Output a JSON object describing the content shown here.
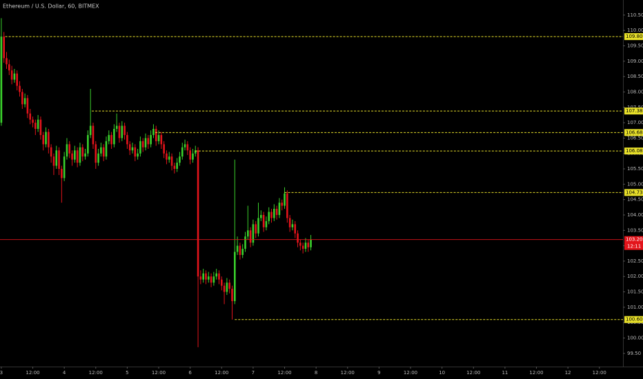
{
  "chart_data": {
    "type": "candlestick",
    "title": "Ethereum / U.S. Dollar, 60, BITMEX",
    "x": [
      0,
      1,
      2,
      3,
      4,
      5,
      6,
      7,
      8,
      9,
      10,
      11,
      12,
      13,
      14,
      15,
      16,
      17,
      18,
      19,
      20,
      21,
      22,
      23,
      24,
      25,
      26,
      27,
      28,
      29,
      30,
      31,
      32,
      33,
      34,
      35,
      36,
      37,
      38,
      39,
      40,
      41,
      42,
      43,
      44,
      45,
      46,
      47,
      48,
      49,
      50,
      51,
      52,
      53,
      54,
      55,
      56,
      57,
      58,
      59,
      60,
      61,
      62,
      63,
      64,
      65,
      66,
      67,
      68,
      69,
      70,
      71,
      72,
      73,
      74,
      75,
      76,
      77,
      78,
      79,
      80,
      81,
      82,
      83,
      84,
      85,
      86,
      87,
      88,
      89,
      90,
      91,
      92,
      93,
      94,
      95,
      96,
      97,
      98,
      99,
      100,
      101,
      102,
      103,
      104,
      105,
      106,
      107,
      108,
      109,
      110,
      111,
      112,
      113,
      114,
      115,
      116,
      117,
      118
    ],
    "candles": [
      [
        107.0,
        110.4,
        106.9,
        109.8
      ],
      [
        109.8,
        109.95,
        108.95,
        109.1
      ],
      [
        109.1,
        109.3,
        108.75,
        108.9
      ],
      [
        108.9,
        109.05,
        108.55,
        108.7
      ],
      [
        108.7,
        108.85,
        108.25,
        108.4
      ],
      [
        108.4,
        108.75,
        108.3,
        108.6
      ],
      [
        108.6,
        108.7,
        108.05,
        108.2
      ],
      [
        108.2,
        108.35,
        107.85,
        108.0
      ],
      [
        108.0,
        108.1,
        107.45,
        107.6
      ],
      [
        107.6,
        107.95,
        107.5,
        107.8
      ],
      [
        107.8,
        107.9,
        107.15,
        107.3
      ],
      [
        107.3,
        107.45,
        106.95,
        107.1
      ],
      [
        107.1,
        107.2,
        106.85,
        107.0
      ],
      [
        107.0,
        107.1,
        106.6,
        106.8
      ],
      [
        106.8,
        107.25,
        106.7,
        107.1
      ],
      [
        107.1,
        107.2,
        106.45,
        106.6
      ],
      [
        106.6,
        106.7,
        106.1,
        106.3
      ],
      [
        106.3,
        106.85,
        106.2,
        106.7
      ],
      [
        106.7,
        106.8,
        106.0,
        106.2
      ],
      [
        106.2,
        106.3,
        105.7,
        105.9
      ],
      [
        105.9,
        106.0,
        105.3,
        105.6
      ],
      [
        105.6,
        106.25,
        105.5,
        106.1
      ],
      [
        106.1,
        106.2,
        105.3,
        105.5
      ],
      [
        105.5,
        105.6,
        104.4,
        105.2
      ],
      [
        105.2,
        106.05,
        105.1,
        105.9
      ],
      [
        105.9,
        106.5,
        105.8,
        106.3
      ],
      [
        106.3,
        106.4,
        105.85,
        106.0
      ],
      [
        106.0,
        106.1,
        105.6,
        105.8
      ],
      [
        105.8,
        106.25,
        105.7,
        106.1
      ],
      [
        106.1,
        106.2,
        105.55,
        105.7
      ],
      [
        105.7,
        106.35,
        105.6,
        106.2
      ],
      [
        106.2,
        106.3,
        105.75,
        105.9
      ],
      [
        105.9,
        106.15,
        105.8,
        106.0
      ],
      [
        106.0,
        106.75,
        105.9,
        106.6
      ],
      [
        106.6,
        108.1,
        106.5,
        106.9
      ],
      [
        106.9,
        107.0,
        106.15,
        106.3
      ],
      [
        106.3,
        106.4,
        105.5,
        105.7
      ],
      [
        105.7,
        106.15,
        105.6,
        106.0
      ],
      [
        106.0,
        106.35,
        105.9,
        106.2
      ],
      [
        106.2,
        106.3,
        105.75,
        105.9
      ],
      [
        105.9,
        106.55,
        105.8,
        106.4
      ],
      [
        106.4,
        106.75,
        106.3,
        106.6
      ],
      [
        106.6,
        106.7,
        106.15,
        106.3
      ],
      [
        106.3,
        106.95,
        106.2,
        106.8
      ],
      [
        106.8,
        107.3,
        106.7,
        106.9
      ],
      [
        106.9,
        107.0,
        106.35,
        106.5
      ],
      [
        106.5,
        107.05,
        106.4,
        106.9
      ],
      [
        106.9,
        107.0,
        106.45,
        106.6
      ],
      [
        106.6,
        106.7,
        106.15,
        106.3
      ],
      [
        106.3,
        106.4,
        105.95,
        106.1
      ],
      [
        106.1,
        106.35,
        106.0,
        106.2
      ],
      [
        106.2,
        106.3,
        105.75,
        105.9
      ],
      [
        105.9,
        106.15,
        105.8,
        106.0
      ],
      [
        106.0,
        106.55,
        105.9,
        106.4
      ],
      [
        106.4,
        106.5,
        106.05,
        106.2
      ],
      [
        106.2,
        106.65,
        106.1,
        106.5
      ],
      [
        106.5,
        106.6,
        106.15,
        106.3
      ],
      [
        106.3,
        106.75,
        106.2,
        106.6
      ],
      [
        106.6,
        106.95,
        106.5,
        106.8
      ],
      [
        106.8,
        106.9,
        106.25,
        106.4
      ],
      [
        106.4,
        106.75,
        106.3,
        106.6
      ],
      [
        106.6,
        106.7,
        106.15,
        106.3
      ],
      [
        106.3,
        106.4,
        105.85,
        106.0
      ],
      [
        106.0,
        106.1,
        105.65,
        105.8
      ],
      [
        105.8,
        106.05,
        105.7,
        105.9
      ],
      [
        105.9,
        106.0,
        105.45,
        105.6
      ],
      [
        105.6,
        105.7,
        105.35,
        105.5
      ],
      [
        105.5,
        105.85,
        105.4,
        105.7
      ],
      [
        105.7,
        106.05,
        105.6,
        105.9
      ],
      [
        105.9,
        106.35,
        105.8,
        106.2
      ],
      [
        106.2,
        106.45,
        106.1,
        106.3
      ],
      [
        106.3,
        106.4,
        105.95,
        106.1
      ],
      [
        106.1,
        106.2,
        105.65,
        105.8
      ],
      [
        105.8,
        106.15,
        105.7,
        106.0
      ],
      [
        106.0,
        106.25,
        105.9,
        106.1
      ],
      [
        106.1,
        106.2,
        99.7,
        102.0
      ],
      [
        102.0,
        102.2,
        101.75,
        101.9
      ],
      [
        101.9,
        102.25,
        101.8,
        102.1
      ],
      [
        102.1,
        102.2,
        101.75,
        101.9
      ],
      [
        101.9,
        102.15,
        101.8,
        102.0
      ],
      [
        102.0,
        102.1,
        101.65,
        101.8
      ],
      [
        101.8,
        102.15,
        101.7,
        102.0
      ],
      [
        102.0,
        102.25,
        101.9,
        102.1
      ],
      [
        102.1,
        102.2,
        101.75,
        101.9
      ],
      [
        101.9,
        102.0,
        101.55,
        101.7
      ],
      [
        101.7,
        101.8,
        101.1,
        101.5
      ],
      [
        101.5,
        101.95,
        101.4,
        101.8
      ],
      [
        101.8,
        101.9,
        101.45,
        101.6
      ],
      [
        101.6,
        101.7,
        100.6,
        101.2
      ],
      [
        101.2,
        105.8,
        101.1,
        102.8
      ],
      [
        102.8,
        103.3,
        102.7,
        103.0
      ],
      [
        103.0,
        103.1,
        102.55,
        102.7
      ],
      [
        102.7,
        103.05,
        102.6,
        102.9
      ],
      [
        102.9,
        103.45,
        102.8,
        103.3
      ],
      [
        103.3,
        104.3,
        103.2,
        103.5
      ],
      [
        103.5,
        103.6,
        102.95,
        103.1
      ],
      [
        103.1,
        103.85,
        103.0,
        103.7
      ],
      [
        103.7,
        103.8,
        103.25,
        103.4
      ],
      [
        103.4,
        104.4,
        103.3,
        103.9
      ],
      [
        103.9,
        104.15,
        103.8,
        104.0
      ],
      [
        104.0,
        104.1,
        103.45,
        103.6
      ],
      [
        103.6,
        103.95,
        103.5,
        103.8
      ],
      [
        103.8,
        104.25,
        103.7,
        104.1
      ],
      [
        104.1,
        104.2,
        103.75,
        103.9
      ],
      [
        103.9,
        104.35,
        103.8,
        104.2
      ],
      [
        104.2,
        104.3,
        103.85,
        104.0
      ],
      [
        104.0,
        104.55,
        103.9,
        104.4
      ],
      [
        104.4,
        104.5,
        104.15,
        104.3
      ],
      [
        104.3,
        104.9,
        104.2,
        104.7
      ],
      [
        104.7,
        104.8,
        103.75,
        103.9
      ],
      [
        103.9,
        104.0,
        103.45,
        103.6
      ],
      [
        103.6,
        103.85,
        103.5,
        103.7
      ],
      [
        103.7,
        103.8,
        103.25,
        103.4
      ],
      [
        103.4,
        103.5,
        102.95,
        103.1
      ],
      [
        103.1,
        103.2,
        102.85,
        103.0
      ],
      [
        103.0,
        103.1,
        102.75,
        102.9
      ],
      [
        102.9,
        103.25,
        102.8,
        103.1
      ],
      [
        103.1,
        103.2,
        102.8,
        102.95
      ],
      [
        102.95,
        103.35,
        102.85,
        103.2
      ]
    ],
    "up_color": "#3ad12c",
    "down_color": "#e3141b",
    "xlim": [
      -0.5,
      237
    ],
    "ylim": [
      99.07,
      110.99
    ],
    "xticks": [
      {
        "value": 0,
        "label": "3"
      },
      {
        "value": 12,
        "label": "12:00"
      },
      {
        "value": 24,
        "label": "4"
      },
      {
        "value": 36,
        "label": "12:00"
      },
      {
        "value": 48,
        "label": "5"
      },
      {
        "value": 60,
        "label": "12:00"
      },
      {
        "value": 72,
        "label": "6"
      },
      {
        "value": 84,
        "label": "12:00"
      },
      {
        "value": 96,
        "label": "7"
      },
      {
        "value": 108,
        "label": "12:00"
      },
      {
        "value": 120,
        "label": "8"
      },
      {
        "value": 132,
        "label": "12:00"
      },
      {
        "value": 144,
        "label": "9"
      },
      {
        "value": 156,
        "label": "12:00"
      },
      {
        "value": 168,
        "label": "10"
      },
      {
        "value": 180,
        "label": "12:00"
      },
      {
        "value": 192,
        "label": "11"
      },
      {
        "value": 204,
        "label": "12:00"
      },
      {
        "value": 216,
        "label": "12"
      },
      {
        "value": 228,
        "label": "12:00"
      }
    ],
    "yticks": [
      {
        "value": 99.5,
        "label": "99.50"
      },
      {
        "value": 100,
        "label": "100.00"
      },
      {
        "value": 100.5,
        "label": "100.50"
      },
      {
        "value": 101,
        "label": "101.00"
      },
      {
        "value": 101.5,
        "label": "101.50"
      },
      {
        "value": 102,
        "label": "102.00"
      },
      {
        "value": 102.5,
        "label": "102.50"
      },
      {
        "value": 103,
        "label": "103.00"
      },
      {
        "value": 103.5,
        "label": "103.50"
      },
      {
        "value": 104,
        "label": "104.00"
      },
      {
        "value": 104.5,
        "label": "104.50"
      },
      {
        "value": 105,
        "label": "105.00"
      },
      {
        "value": 105.5,
        "label": "105.50"
      },
      {
        "value": 106,
        "label": "106.00"
      },
      {
        "value": 106.5,
        "label": "106.50"
      },
      {
        "value": 107,
        "label": "107.00"
      },
      {
        "value": 107.5,
        "label": "107.50"
      },
      {
        "value": 108,
        "label": "108.00"
      },
      {
        "value": 108.5,
        "label": "108.50"
      },
      {
        "value": 109,
        "label": "109.00"
      },
      {
        "value": 109.5,
        "label": "109.50"
      },
      {
        "value": 110,
        "label": "110.00"
      },
      {
        "value": 110.5,
        "label": "110.50"
      }
    ],
    "levels": [
      {
        "value": 109.8,
        "label": "109.80",
        "x": 1.5
      },
      {
        "value": 107.38,
        "label": "107.38",
        "x": 34.5
      },
      {
        "value": 106.68,
        "label": "106.68",
        "x": 58.7
      },
      {
        "value": 106.08,
        "label": "106.08",
        "x": 73.9
      },
      {
        "value": 104.73,
        "label": "104.73",
        "x": 108
      },
      {
        "value": 100.6,
        "label": "100.60",
        "x": 89
      }
    ],
    "level_color": "#e8e02a",
    "last_price": {
      "value": 103.2,
      "label": "103.20",
      "countdown": "12:11",
      "color": "#e3141b"
    }
  }
}
